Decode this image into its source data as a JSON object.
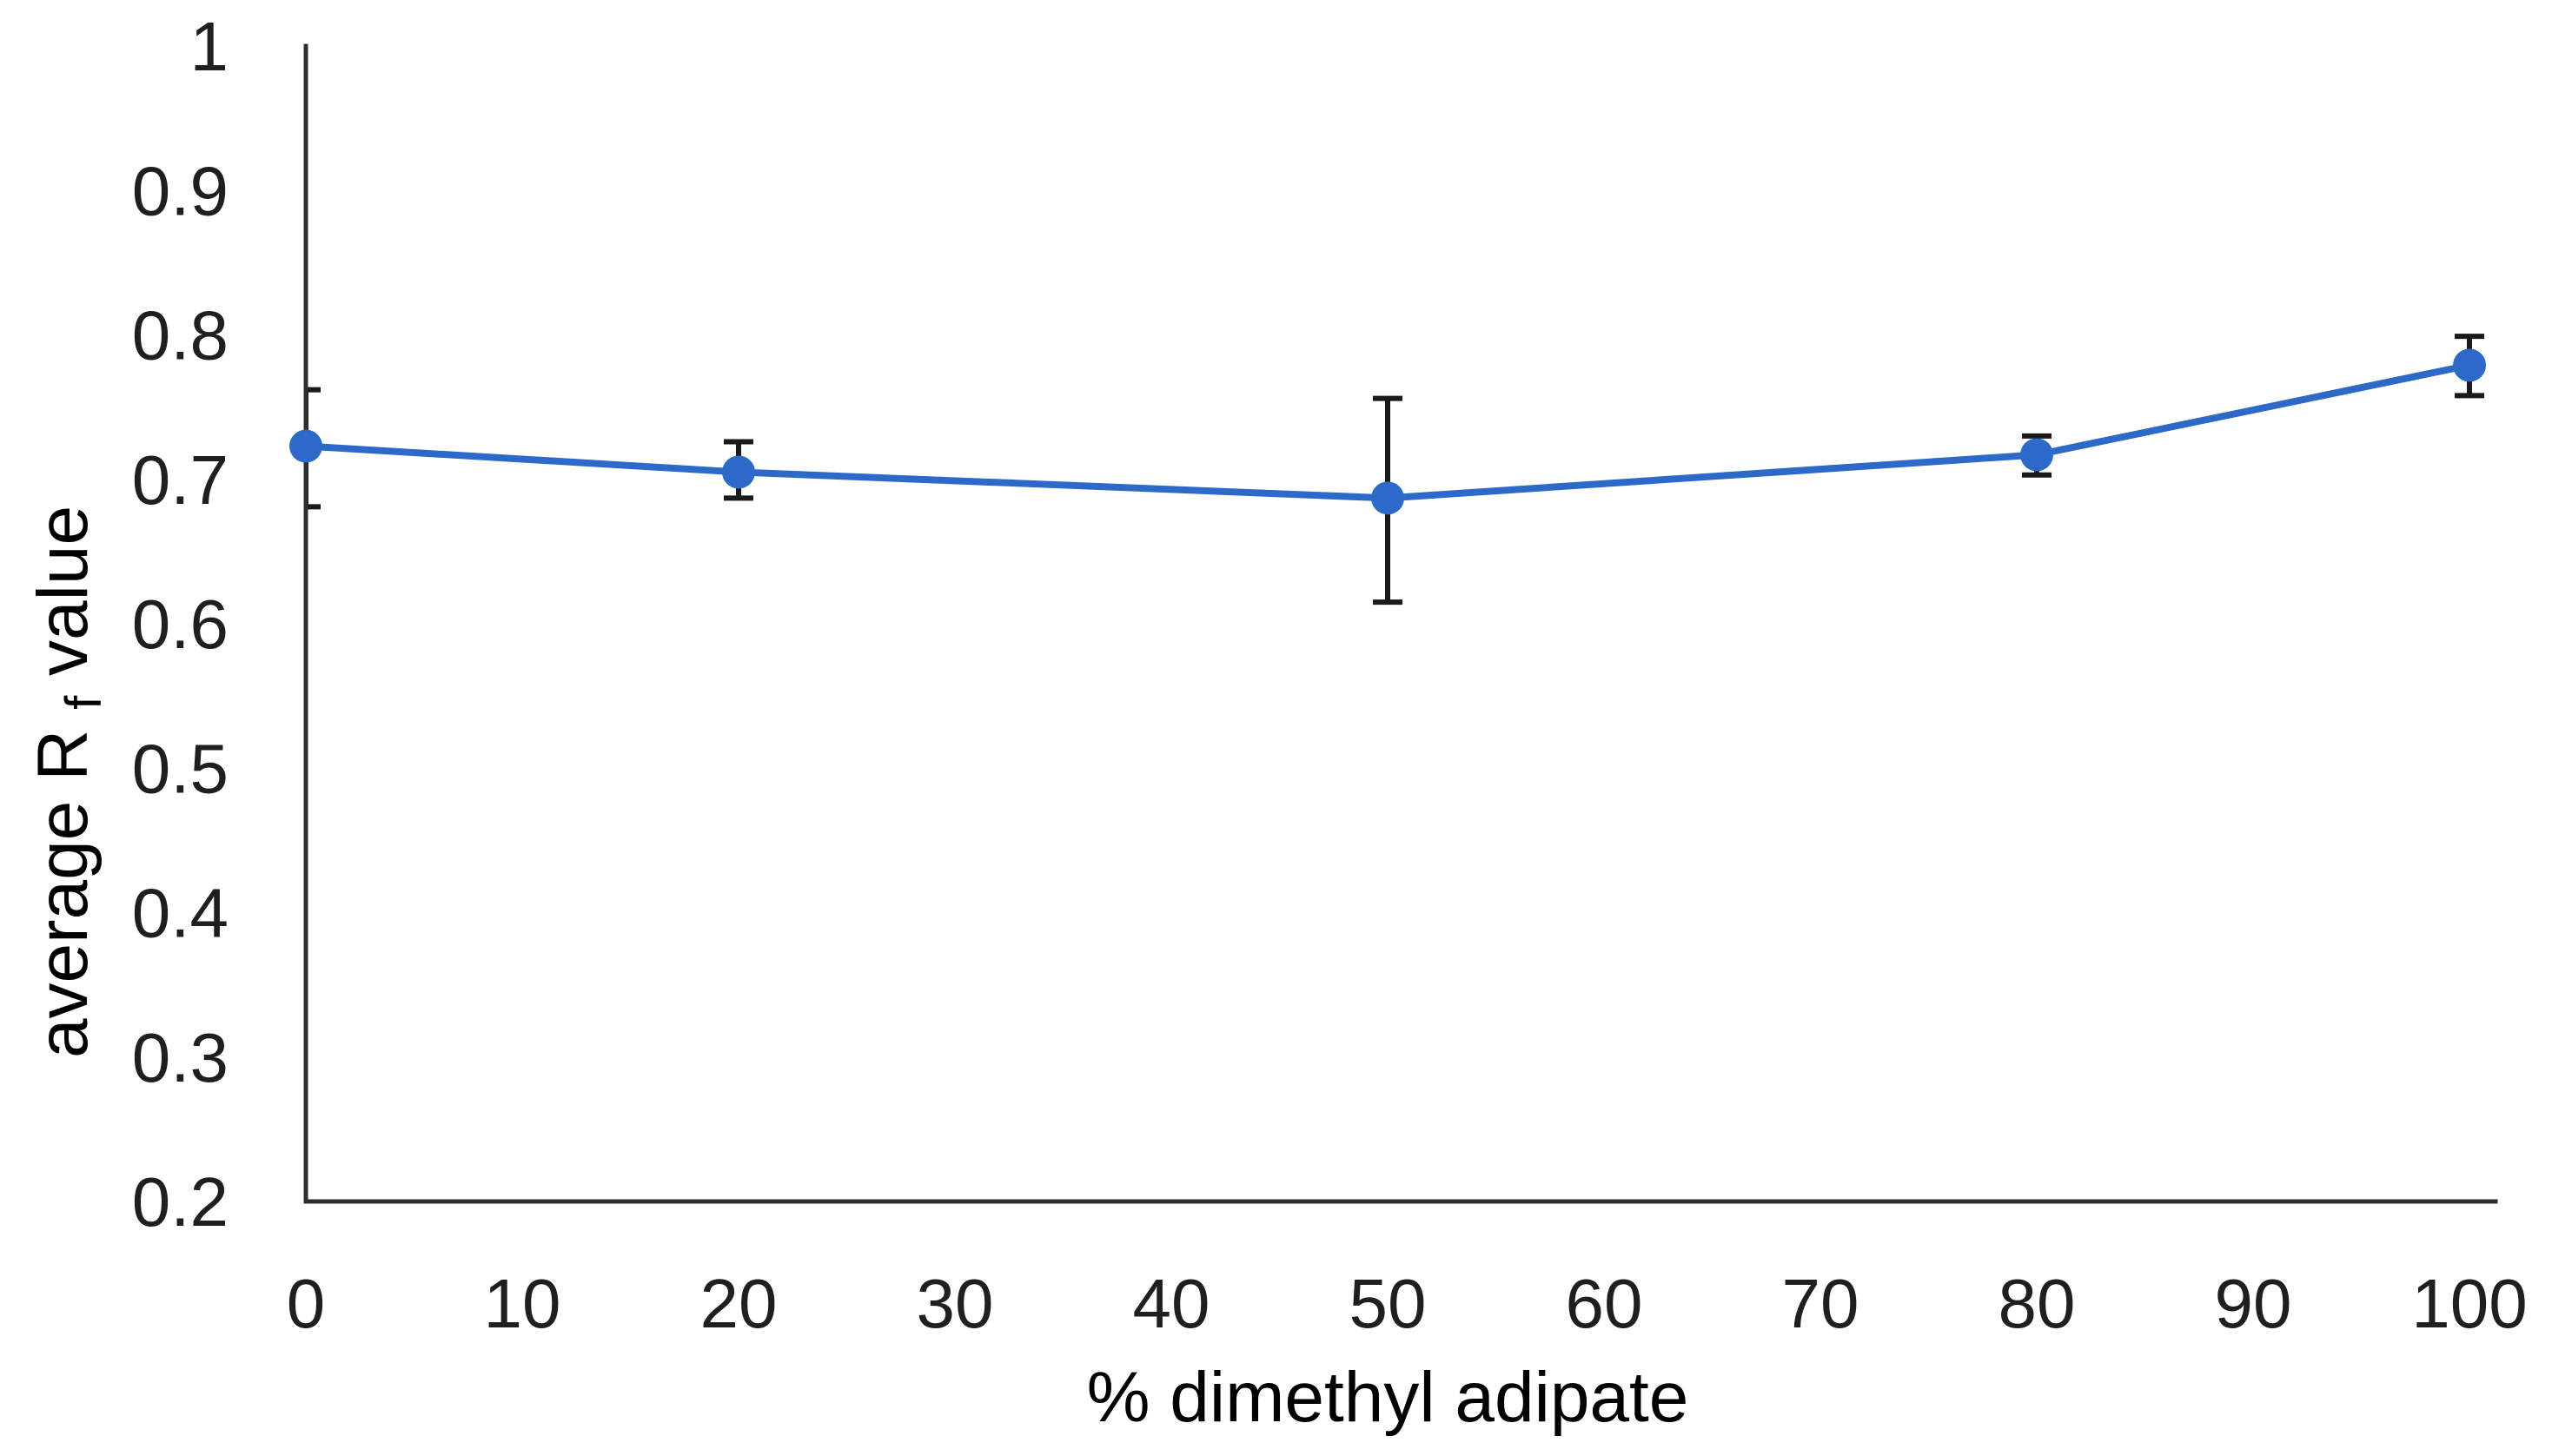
{
  "chart_data": {
    "type": "line",
    "title": "",
    "xlabel": "% dimethyl adipate",
    "ylabel": "average Rf value",
    "ylabel_parts": {
      "pre": "average R",
      "sub": "f",
      "post": " value"
    },
    "x": [
      0,
      20,
      50,
      80,
      100
    ],
    "series": [
      {
        "name": "average Rf value",
        "values": [
          0.723,
          0.705,
          0.687,
          0.717,
          0.779
        ],
        "error_plus": [
          0.039,
          0.021,
          0.069,
          0.013,
          0.02
        ],
        "error_minus": [
          0.042,
          0.018,
          0.072,
          0.014,
          0.021
        ]
      }
    ],
    "xlim": [
      0,
      100
    ],
    "ylim": [
      0.2,
      1.0
    ],
    "x_tick_values": [
      0,
      10,
      20,
      30,
      40,
      50,
      60,
      70,
      80,
      90,
      100
    ],
    "x_tick_labels": [
      "0",
      "10",
      "20",
      "30",
      "40",
      "50",
      "60",
      "70",
      "80",
      "90",
      "100"
    ],
    "y_tick_values": [
      1.0,
      0.9,
      0.8,
      0.7,
      0.6,
      0.5,
      0.4,
      0.3,
      0.2
    ],
    "y_tick_labels": [
      "1",
      "0.9",
      "0.8",
      "0.7",
      "0.6",
      "0.5",
      "0.4",
      "0.3",
      "0.2"
    ],
    "grid": false,
    "legend": "none",
    "marker": "circle",
    "colors": {
      "line": "#2d69c8",
      "marker": "#2d69c8",
      "error_bar": "#1a1a1a",
      "axis": "#2e2e2e",
      "text": "#1f1f1f",
      "background": "#ffffff"
    }
  }
}
